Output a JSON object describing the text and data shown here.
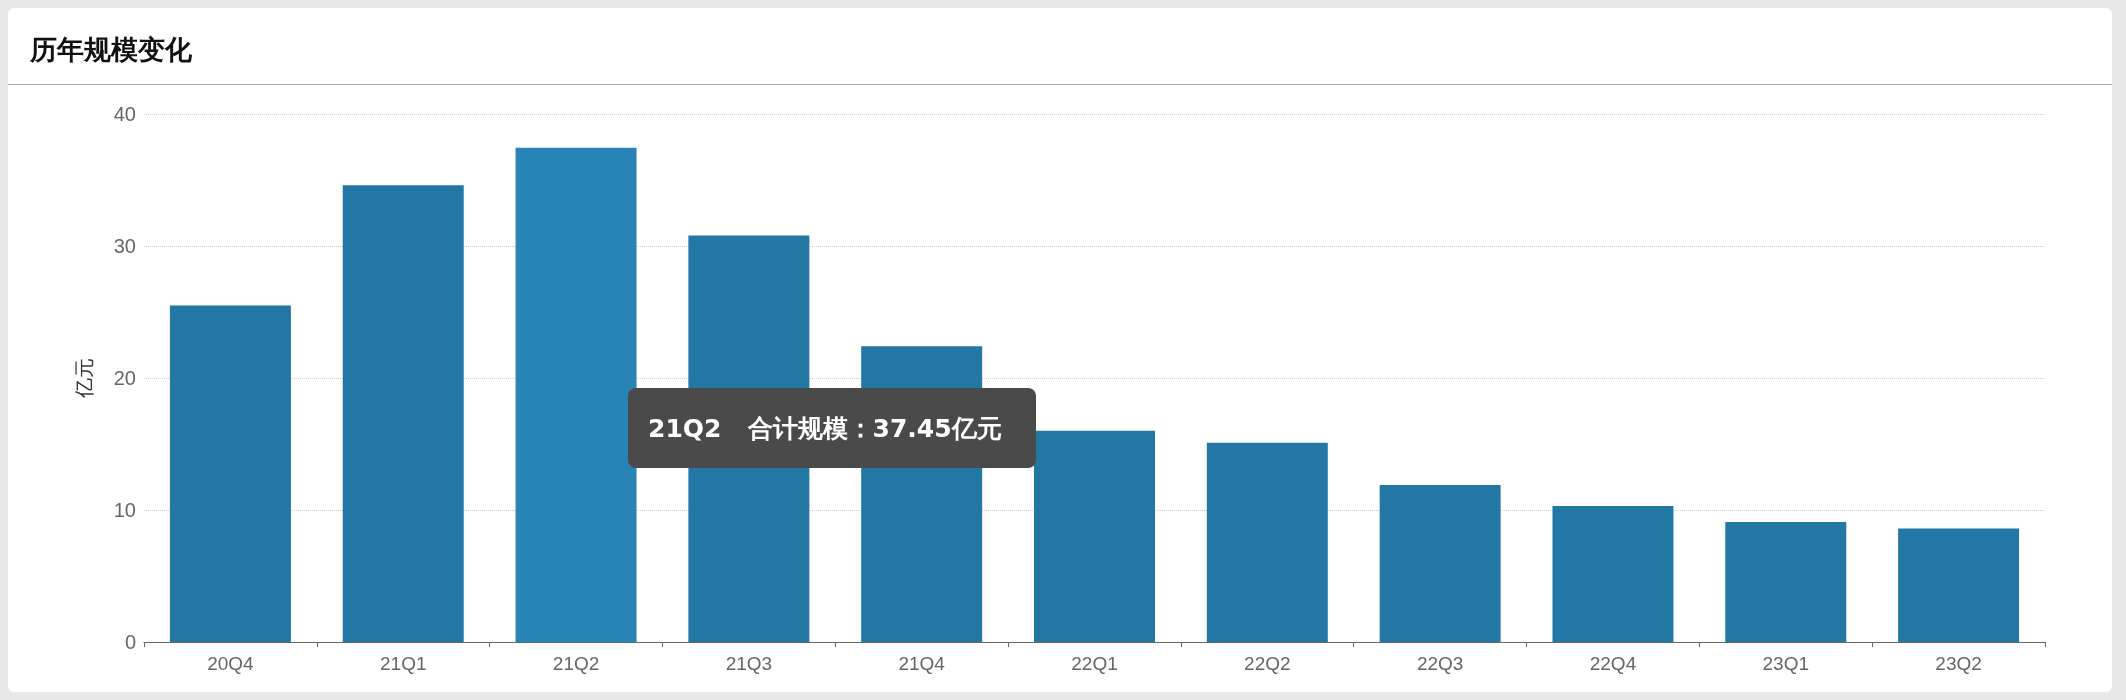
{
  "chart_data": {
    "type": "bar",
    "title": "历年规模变化",
    "ylabel": "亿元",
    "categories": [
      "20Q4",
      "21Q1",
      "21Q2",
      "21Q3",
      "21Q4",
      "22Q1",
      "22Q2",
      "22Q3",
      "22Q4",
      "23Q1",
      "23Q2"
    ],
    "values": [
      25.5,
      34.6,
      37.45,
      30.8,
      22.4,
      16.0,
      15.1,
      11.9,
      10.3,
      9.1,
      8.6
    ],
    "colors": [
      "#2277a4",
      "#2277a4",
      "#2784b5",
      "#2277a4",
      "#2277a4",
      "#2277a4",
      "#2277a4",
      "#2277a4",
      "#2277a4",
      "#2277a4",
      "#2277a4"
    ],
    "ylim": [
      0,
      40
    ],
    "yticks": [
      0,
      10,
      20,
      30,
      40
    ],
    "grid": "y",
    "annotations": [
      "21Q2   合计规模：37.45亿元"
    ]
  }
}
